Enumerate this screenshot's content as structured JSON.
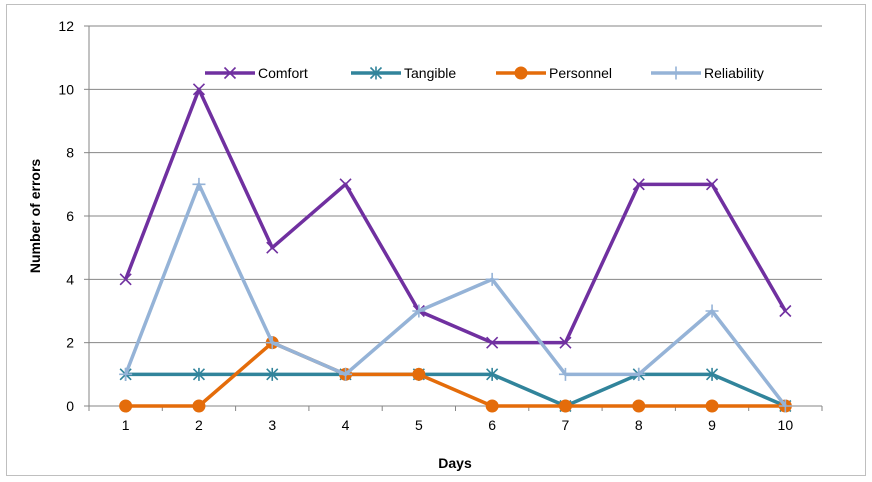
{
  "chart_data": {
    "type": "line",
    "title": "",
    "xlabel": "Days",
    "ylabel": "Number of errors",
    "categories": [
      "1",
      "2",
      "3",
      "4",
      "5",
      "6",
      "7",
      "8",
      "9",
      "10"
    ],
    "ylim": [
      0,
      12
    ],
    "yticks": [
      "0",
      "2",
      "4",
      "6",
      "8",
      "10",
      "12"
    ],
    "grid": "horizontal",
    "legend_position": "top",
    "series": [
      {
        "name": "Comfort",
        "values": [
          4,
          10,
          5,
          7,
          3,
          2,
          2,
          7,
          7,
          3
        ],
        "color": "#7030a0",
        "marker": "x"
      },
      {
        "name": "Tangible",
        "values": [
          1,
          1,
          1,
          1,
          1,
          1,
          0,
          1,
          1,
          0
        ],
        "color": "#31849b",
        "marker": "star"
      },
      {
        "name": "Personnel",
        "values": [
          0,
          0,
          2,
          1,
          1,
          0,
          0,
          0,
          0,
          0
        ],
        "color": "#e46c0a",
        "marker": "circle"
      },
      {
        "name": "Reliability",
        "values": [
          1,
          7,
          2,
          1,
          3,
          4,
          1,
          1,
          3,
          0
        ],
        "color": "#95b3d7",
        "marker": "plus"
      }
    ]
  }
}
